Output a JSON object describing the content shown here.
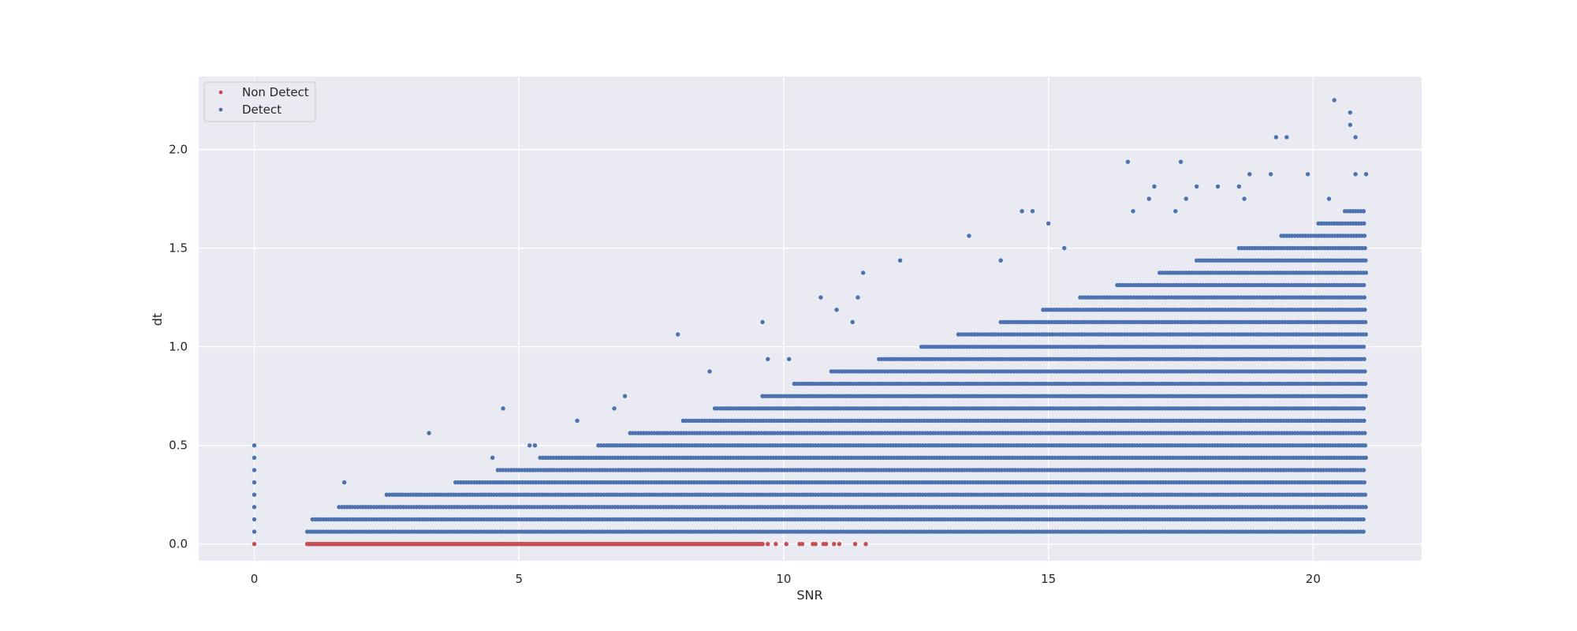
{
  "chart_data": {
    "type": "scatter",
    "title": "",
    "xlabel": "SNR",
    "ylabel": "dt",
    "xlim": [
      -1.05,
      22.05
    ],
    "ylim": [
      -0.085,
      2.37
    ],
    "x_ticks": [
      0,
      5,
      10,
      15,
      20
    ],
    "x_tick_labels": [
      "0",
      "5",
      "10",
      "15",
      "20"
    ],
    "y_ticks": [
      0.0,
      0.5,
      1.0,
      1.5,
      2.0
    ],
    "y_tick_labels": [
      "0.0",
      "0.5",
      "1.0",
      "1.5",
      "2.0"
    ],
    "grid": true,
    "legend_position": "top-left",
    "background_color": "#eaeaf2",
    "grid_color": "#ffffff",
    "dt_step": 0.0625,
    "series": [
      {
        "name": "Non Detect",
        "color": "#c44e52",
        "dense_band": {
          "x": [
            1.0,
            9.6
          ],
          "y": 0.0
        },
        "points": [
          [
            0,
            0.0
          ],
          [
            9.6,
            0.0
          ],
          [
            9.7,
            0.0
          ],
          [
            9.85,
            0.0
          ],
          [
            10.05,
            0.0
          ],
          [
            10.3,
            0.0
          ],
          [
            10.35,
            0.0
          ],
          [
            10.55,
            0.0
          ],
          [
            10.6,
            0.0
          ],
          [
            10.75,
            0.0
          ],
          [
            10.8,
            0.0
          ],
          [
            10.95,
            0.0
          ],
          [
            11.05,
            0.0
          ],
          [
            11.35,
            0.0
          ],
          [
            11.55,
            0.0
          ]
        ]
      },
      {
        "name": "Detect",
        "color": "#4c72b0",
        "rows": [
          {
            "y": 0.0625,
            "x": [
              1.0,
              21.0
            ]
          },
          {
            "y": 0.125,
            "x": [
              1.1,
              21.0
            ]
          },
          {
            "y": 0.1875,
            "x": [
              1.6,
              21.0
            ]
          },
          {
            "y": 0.25,
            "x": [
              2.5,
              21.0
            ]
          },
          {
            "y": 0.3125,
            "x": [
              3.8,
              21.0
            ]
          },
          {
            "y": 0.375,
            "x": [
              4.6,
              21.0
            ]
          },
          {
            "y": 0.4375,
            "x": [
              5.4,
              21.0
            ]
          },
          {
            "y": 0.5,
            "x": [
              6.5,
              21.0
            ]
          },
          {
            "y": 0.5625,
            "x": [
              7.1,
              21.0
            ]
          },
          {
            "y": 0.625,
            "x": [
              8.1,
              21.0
            ]
          },
          {
            "y": 0.6875,
            "x": [
              8.7,
              21.0
            ]
          },
          {
            "y": 0.75,
            "x": [
              9.6,
              21.0
            ]
          },
          {
            "y": 0.8125,
            "x": [
              10.2,
              21.0
            ]
          },
          {
            "y": 0.875,
            "x": [
              10.9,
              21.0
            ]
          },
          {
            "y": 0.9375,
            "x": [
              11.8,
              21.0
            ]
          },
          {
            "y": 1.0,
            "x": [
              12.6,
              21.0
            ]
          },
          {
            "y": 1.0625,
            "x": [
              13.3,
              21.0
            ]
          },
          {
            "y": 1.125,
            "x": [
              14.1,
              21.0
            ]
          },
          {
            "y": 1.1875,
            "x": [
              14.9,
              21.0
            ]
          },
          {
            "y": 1.25,
            "x": [
              15.6,
              21.0
            ]
          },
          {
            "y": 1.3125,
            "x": [
              16.3,
              21.0
            ]
          },
          {
            "y": 1.375,
            "x": [
              17.1,
              21.0
            ]
          },
          {
            "y": 1.4375,
            "x": [
              17.8,
              21.0
            ]
          },
          {
            "y": 1.5,
            "x": [
              18.6,
              21.0
            ]
          },
          {
            "y": 1.5625,
            "x": [
              19.4,
              21.0
            ]
          },
          {
            "y": 1.625,
            "x": [
              20.1,
              21.0
            ]
          },
          {
            "y": 1.6875,
            "x": [
              20.6,
              21.0
            ]
          }
        ],
        "points": [
          [
            0,
            0.0625
          ],
          [
            0,
            0.125
          ],
          [
            0,
            0.1875
          ],
          [
            0,
            0.25
          ],
          [
            0,
            0.3125
          ],
          [
            0,
            0.375
          ],
          [
            0,
            0.4375
          ],
          [
            0,
            0.5
          ],
          [
            1.7,
            0.3125
          ],
          [
            3.3,
            0.5625
          ],
          [
            4.7,
            0.6875
          ],
          [
            4.5,
            0.4375
          ],
          [
            5.2,
            0.5
          ],
          [
            5.3,
            0.5
          ],
          [
            6.1,
            0.625
          ],
          [
            6.8,
            0.6875
          ],
          [
            7.0,
            0.75
          ],
          [
            8.0,
            1.0625
          ],
          [
            8.6,
            0.875
          ],
          [
            9.6,
            1.125
          ],
          [
            9.7,
            0.9375
          ],
          [
            10.1,
            0.9375
          ],
          [
            10.7,
            1.25
          ],
          [
            11.0,
            1.1875
          ],
          [
            11.3,
            1.125
          ],
          [
            11.4,
            1.25
          ],
          [
            11.5,
            1.375
          ],
          [
            12.2,
            1.4375
          ],
          [
            13.5,
            1.5625
          ],
          [
            14.1,
            1.4375
          ],
          [
            14.5,
            1.6875
          ],
          [
            14.7,
            1.6875
          ],
          [
            15.0,
            1.625
          ],
          [
            15.3,
            1.5
          ],
          [
            16.5,
            1.9375
          ],
          [
            16.6,
            1.6875
          ],
          [
            16.9,
            1.75
          ],
          [
            17.0,
            1.8125
          ],
          [
            17.4,
            1.6875
          ],
          [
            17.5,
            1.9375
          ],
          [
            17.6,
            1.75
          ],
          [
            17.8,
            1.8125
          ],
          [
            18.2,
            1.8125
          ],
          [
            18.6,
            1.8125
          ],
          [
            18.7,
            1.75
          ],
          [
            18.8,
            1.875
          ],
          [
            19.2,
            1.875
          ],
          [
            19.3,
            2.0625
          ],
          [
            19.5,
            2.0625
          ],
          [
            19.9,
            1.875
          ],
          [
            20.3,
            1.75
          ],
          [
            20.4,
            2.25
          ],
          [
            20.7,
            2.1875
          ],
          [
            20.7,
            2.125
          ],
          [
            20.8,
            2.0625
          ],
          [
            20.8,
            1.875
          ],
          [
            21.0,
            1.875
          ]
        ]
      }
    ]
  }
}
